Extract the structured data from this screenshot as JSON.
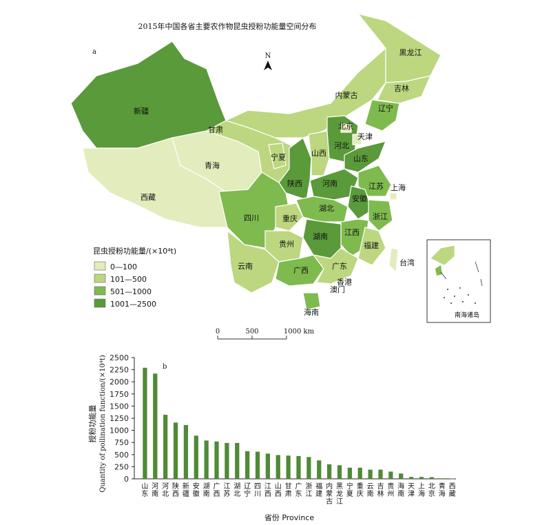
{
  "map": {
    "title": "2015年中国各省主要农作物昆虫授粉功能量空间分布",
    "panel_label": "a",
    "north_label": "N",
    "legend_title": "昆虫授粉功能量/(×10⁴t)",
    "legend_items": [
      {
        "label": "0—100",
        "color": "#e3ecbd"
      },
      {
        "label": "101—500",
        "color": "#bcd77f"
      },
      {
        "label": "501—1000",
        "color": "#7fba4e"
      },
      {
        "label": "1001—2500",
        "color": "#5a9a3a"
      }
    ],
    "scale": {
      "ticks": [
        "0",
        "500",
        "1000 km"
      ]
    },
    "inset_label": "南海诸岛",
    "province_labels": [
      "黑龙江",
      "吉林",
      "辽宁",
      "内蒙古",
      "北京",
      "天津",
      "河北",
      "山西",
      "山东",
      "宁夏",
      "甘肃",
      "新疆",
      "青海",
      "西藏",
      "陕西",
      "河南",
      "江苏",
      "上海",
      "安徽",
      "湖北",
      "四川",
      "重庆",
      "浙江",
      "江西",
      "湖南",
      "福建",
      "贵州",
      "云南",
      "广西",
      "广东",
      "台湾",
      "香港",
      "澳门",
      "海南"
    ]
  },
  "chart_data": {
    "type": "bar",
    "panel_label": "b",
    "categories": [
      "山东",
      "河南",
      "河北",
      "陕西",
      "新疆",
      "安徽",
      "湖南",
      "广西",
      "江苏",
      "湖北",
      "辽宁",
      "四川",
      "江西",
      "山西",
      "甘肃",
      "广东",
      "浙江",
      "福建",
      "内蒙古",
      "黑龙江",
      "宁夏",
      "重庆",
      "云南",
      "吉林",
      "贵州",
      "海南",
      "天津",
      "上海",
      "北京",
      "青海",
      "西藏"
    ],
    "values": [
      2290,
      2170,
      1320,
      1160,
      1110,
      890,
      790,
      770,
      740,
      740,
      570,
      560,
      520,
      490,
      480,
      470,
      450,
      380,
      300,
      280,
      230,
      230,
      190,
      190,
      150,
      110,
      40,
      40,
      35,
      10,
      5
    ],
    "ylabel_cn": "授粉功能量",
    "ylabel_en": "Quantity of pollination function/(×10⁴t)",
    "xlabel": "省份 Province",
    "ylim": [
      0,
      2500
    ],
    "yticks": [
      "0",
      "250",
      "500",
      "750",
      "1000",
      "1250",
      "1500",
      "1750",
      "2000",
      "2250",
      "2500"
    ],
    "bar_color": "#4f8a34"
  }
}
